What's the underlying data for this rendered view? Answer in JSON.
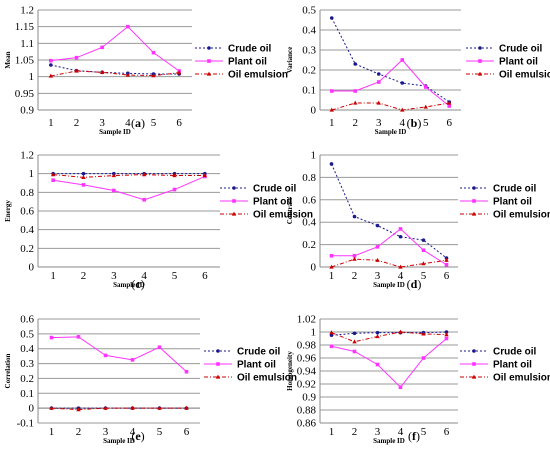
{
  "colors": {
    "crude": "#1a1a8c",
    "plant": "#ff33ff",
    "emulsion": "#cc0000",
    "grid": "#9a9a9a"
  },
  "chart_data": [
    {
      "type": "line",
      "label": "(a)",
      "ylabel": "Mean",
      "xlabel": "Sample ID",
      "x": [
        1,
        2,
        3,
        4,
        5,
        6
      ],
      "ylim": [
        0.9,
        1.2
      ],
      "yticks": [
        "0.9",
        "0.95",
        "1",
        "1.05",
        "1.1",
        "1.15",
        "1.2"
      ],
      "legend": "right",
      "series": [
        {
          "name": "Crude oil",
          "values": [
            1.035,
            1.018,
            1.013,
            1.01,
            1.008,
            1.008
          ]
        },
        {
          "name": "Plant oil",
          "values": [
            1.048,
            1.057,
            1.088,
            1.15,
            1.072,
            1.017
          ]
        },
        {
          "name": "Oil emulsion",
          "values": [
            1.002,
            1.017,
            1.013,
            1.005,
            1.003,
            1.012
          ]
        }
      ]
    },
    {
      "type": "line",
      "label": "(b)",
      "ylabel": "Variance",
      "xlabel": "Sample ID",
      "x": [
        1,
        2,
        3,
        4,
        5,
        6
      ],
      "ylim": [
        0,
        0.5
      ],
      "yticks": [
        "0",
        "0.1",
        "0.2",
        "0.3",
        "0.4",
        "0.5"
      ],
      "legend": "right",
      "series": [
        {
          "name": "Crude oil",
          "values": [
            0.46,
            0.23,
            0.18,
            0.135,
            0.12,
            0.04
          ]
        },
        {
          "name": "Plant oil",
          "values": [
            0.095,
            0.095,
            0.14,
            0.25,
            0.115,
            0.02
          ]
        },
        {
          "name": "Oil emulsion",
          "values": [
            0.0,
            0.035,
            0.035,
            0.0,
            0.015,
            0.035
          ]
        }
      ]
    },
    {
      "type": "line",
      "label": "(c)",
      "ylabel": "Energy",
      "xlabel": "Sample ID",
      "x": [
        1,
        2,
        3,
        4,
        5,
        6
      ],
      "ylim": [
        0,
        1.2
      ],
      "yticks": [
        "0",
        "0.2",
        "0.4",
        "0.6",
        "0.8",
        "1",
        "1.2"
      ],
      "legend": "right",
      "series": [
        {
          "name": "Crude oil",
          "values": [
            1.0,
            1.0,
            1.0,
            1.0,
            1.0,
            1.0
          ]
        },
        {
          "name": "Plant oil",
          "values": [
            0.93,
            0.88,
            0.82,
            0.72,
            0.83,
            0.97
          ]
        },
        {
          "name": "Oil emulsion",
          "values": [
            0.99,
            0.96,
            0.98,
            0.99,
            0.98,
            0.98
          ]
        }
      ]
    },
    {
      "type": "line",
      "label": "(d)",
      "ylabel": "Contrast",
      "xlabel": "Sample ID",
      "x": [
        1,
        2,
        3,
        4,
        5,
        6
      ],
      "ylim": [
        0,
        1
      ],
      "yticks": [
        "0",
        "0.2",
        "0.4",
        "0.6",
        "0.8",
        "1"
      ],
      "legend": "right",
      "series": [
        {
          "name": "Crude oil",
          "values": [
            0.92,
            0.45,
            0.37,
            0.27,
            0.24,
            0.08
          ]
        },
        {
          "name": "Plant oil",
          "values": [
            0.1,
            0.1,
            0.18,
            0.34,
            0.15,
            0.02
          ]
        },
        {
          "name": "Oil emulsion",
          "values": [
            0.0,
            0.07,
            0.06,
            0.0,
            0.03,
            0.06
          ]
        }
      ]
    },
    {
      "type": "line",
      "label": "(e)",
      "ylabel": "Correlation",
      "xlabel": "Sample ID",
      "x": [
        1,
        2,
        3,
        4,
        5,
        6
      ],
      "ylim": [
        -0.1,
        0.6
      ],
      "yticks": [
        "-0.1",
        "0",
        "0.1",
        "0.2",
        "0.3",
        "0.4",
        "0.5",
        "0.6"
      ],
      "legend": "right",
      "series": [
        {
          "name": "Crude oil",
          "values": [
            0.0,
            0.0,
            0.0,
            0.0,
            0.0,
            0.0
          ]
        },
        {
          "name": "Plant oil",
          "values": [
            0.475,
            0.48,
            0.355,
            0.325,
            0.41,
            0.245
          ]
        },
        {
          "name": "Oil emulsion",
          "values": [
            0.0,
            -0.01,
            0.0,
            0.0,
            0.0,
            0.0
          ]
        }
      ]
    },
    {
      "type": "line",
      "label": "(f)",
      "ylabel": "Homogeneity",
      "xlabel": "Sample ID",
      "x": [
        1,
        2,
        3,
        4,
        5,
        6
      ],
      "ylim": [
        0.86,
        1.02
      ],
      "yticks": [
        "0.86",
        "0.88",
        "0.9",
        "0.92",
        "0.94",
        "0.96",
        "0.98",
        "1",
        "1.02"
      ],
      "legend": "right",
      "series": [
        {
          "name": "Crude oil",
          "values": [
            0.995,
            0.998,
            0.999,
            0.999,
            0.999,
            1.0
          ]
        },
        {
          "name": "Plant oil",
          "values": [
            0.978,
            0.97,
            0.95,
            0.915,
            0.96,
            0.99
          ]
        },
        {
          "name": "Oil emulsion",
          "values": [
            0.999,
            0.985,
            0.993,
            1.0,
            0.997,
            0.996
          ]
        }
      ]
    }
  ]
}
